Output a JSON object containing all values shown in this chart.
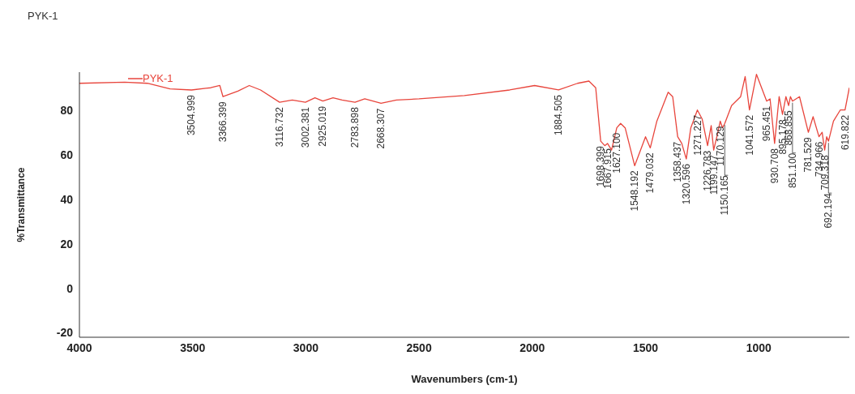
{
  "chart_data": {
    "type": "line",
    "title": "PYK-1",
    "xlabel": "Wavenumbers (cm-1)",
    "ylabel": "%Transmittance",
    "xlim": [
      4000,
      600
    ],
    "xticks": [
      4000,
      3500,
      3000,
      2500,
      2000,
      1500,
      1000
    ],
    "ylim": [
      -22,
      97
    ],
    "yticks": [
      -20,
      0,
      20,
      40,
      60,
      80
    ],
    "grid": false,
    "legend": "top left",
    "marker": "none",
    "line_style": "solid",
    "series": [
      {
        "name": "PYK-1",
        "color": "#e8453c",
        "x": [
          4000,
          3800,
          3700,
          3600,
          3505,
          3420,
          3380,
          3366,
          3300,
          3250,
          3200,
          3116,
          3060,
          3002,
          2960,
          2925,
          2880,
          2840,
          2783,
          2740,
          2668,
          2600,
          2500,
          2300,
          2100,
          1990,
          1884,
          1800,
          1750,
          1720,
          1698,
          1680,
          1668,
          1650,
          1627,
          1610,
          1590,
          1548,
          1500,
          1479,
          1450,
          1400,
          1380,
          1358,
          1340,
          1320,
          1300,
          1271,
          1250,
          1226,
          1210,
          1199,
          1185,
          1170,
          1160,
          1150,
          1120,
          1080,
          1060,
          1041,
          1010,
          965,
          950,
          930,
          910,
          895,
          880,
          868,
          860,
          851,
          820,
          781,
          760,
          734,
          720,
          709,
          700,
          692,
          670,
          640,
          619,
          600
        ],
        "values": [
          92,
          92.5,
          92,
          89.5,
          89,
          90,
          91,
          86,
          88.5,
          91,
          89,
          83.5,
          84.5,
          83.5,
          85.5,
          84,
          85.5,
          84.5,
          83.5,
          85,
          83,
          84.5,
          85,
          86.5,
          89,
          91,
          89,
          92,
          93,
          90,
          66,
          64,
          65,
          62,
          72,
          74,
          72,
          55,
          68,
          63,
          75,
          88,
          86,
          68,
          65,
          58,
          72,
          80,
          76,
          64,
          73,
          62,
          68,
          75,
          72,
          74,
          82,
          86,
          95,
          80,
          96,
          84,
          85,
          65,
          86,
          78,
          86,
          82,
          86,
          84,
          86,
          70,
          77,
          68,
          70,
          62,
          68,
          66,
          75,
          80,
          80,
          90
        ]
      }
    ],
    "annotations": [
      {
        "text": "3504.999",
        "x": 3505,
        "y": 89
      },
      {
        "text": "3366.399",
        "x": 3366,
        "y": 86
      },
      {
        "text": "3116.732",
        "x": 3116,
        "y": 83.5
      },
      {
        "text": "3002.381",
        "x": 3002,
        "y": 83.5
      },
      {
        "text": "2925.019",
        "x": 2925,
        "y": 84
      },
      {
        "text": "2783.898",
        "x": 2783,
        "y": 83.5
      },
      {
        "text": "2668.307",
        "x": 2668,
        "y": 83
      },
      {
        "text": "1884.505",
        "x": 1884,
        "y": 89
      },
      {
        "text": "1698.399",
        "x": 1698,
        "y": 66
      },
      {
        "text": "1667.915",
        "x": 1668,
        "y": 65
      },
      {
        "text": "1627.100",
        "x": 1627,
        "y": 72
      },
      {
        "text": "1548.192",
        "x": 1548,
        "y": 55
      },
      {
        "text": "1479.032",
        "x": 1479,
        "y": 63
      },
      {
        "text": "1358.437",
        "x": 1358,
        "y": 68
      },
      {
        "text": "1320.596",
        "x": 1320,
        "y": 58
      },
      {
        "text": "1271.227",
        "x": 1271,
        "y": 80
      },
      {
        "text": "1226.783",
        "x": 1226,
        "y": 64
      },
      {
        "text": "1199.147",
        "x": 1199,
        "y": 62
      },
      {
        "text": "1170.129",
        "x": 1170,
        "y": 75
      },
      {
        "text": "1150.165",
        "x": 1150,
        "y": 74
      },
      {
        "text": "1041.572",
        "x": 1041,
        "y": 80
      },
      {
        "text": "965.451",
        "x": 965,
        "y": 84
      },
      {
        "text": "930.708",
        "x": 930,
        "y": 65
      },
      {
        "text": "895.178",
        "x": 895,
        "y": 78
      },
      {
        "text": "868.855",
        "x": 868,
        "y": 82
      },
      {
        "text": "851.100",
        "x": 851,
        "y": 84
      },
      {
        "text": "781.529",
        "x": 781,
        "y": 70
      },
      {
        "text": "734.966",
        "x": 734,
        "y": 68
      },
      {
        "text": "709.318",
        "x": 709,
        "y": 62
      },
      {
        "text": "692.194",
        "x": 692,
        "y": 66
      },
      {
        "text": "619.822",
        "x": 619,
        "y": 80
      }
    ]
  }
}
